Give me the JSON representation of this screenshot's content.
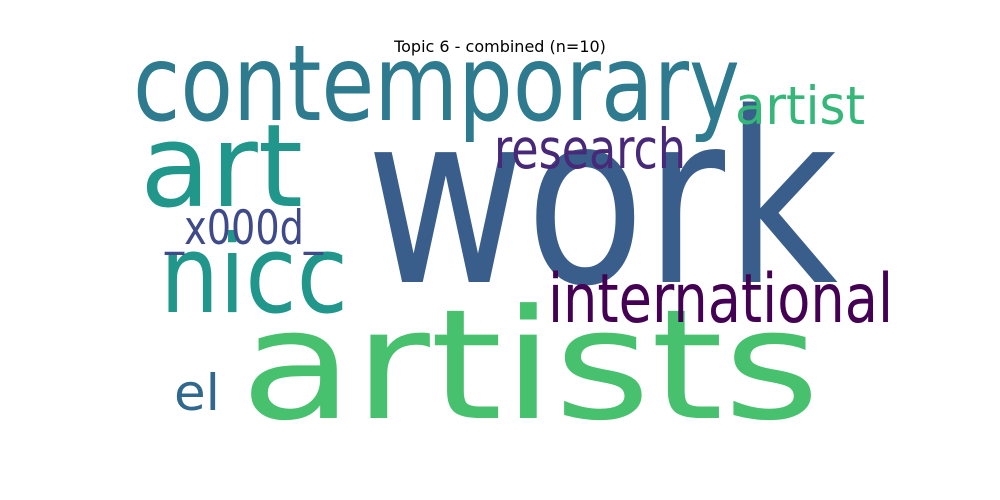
{
  "title": "Topic 6 - combined (n=10)",
  "chart_data": {
    "type": "wordcloud",
    "title": "Topic 6 - combined (n=10)",
    "words": [
      {
        "text": "work",
        "color": "#3a5e8c"
      },
      {
        "text": "artists",
        "color": "#47c16e"
      },
      {
        "text": "contemporary",
        "color": "#2e7a8e"
      },
      {
        "text": "art",
        "color": "#21968b"
      },
      {
        "text": "nicc",
        "color": "#21968b"
      },
      {
        "text": "international",
        "color": "#440154"
      },
      {
        "text": "research",
        "color": "#482878"
      },
      {
        "text": "artist",
        "color": "#35b779"
      },
      {
        "text": "_x000d_",
        "color": "#3e4a89"
      },
      {
        "text": "el",
        "color": "#31688e"
      }
    ]
  }
}
